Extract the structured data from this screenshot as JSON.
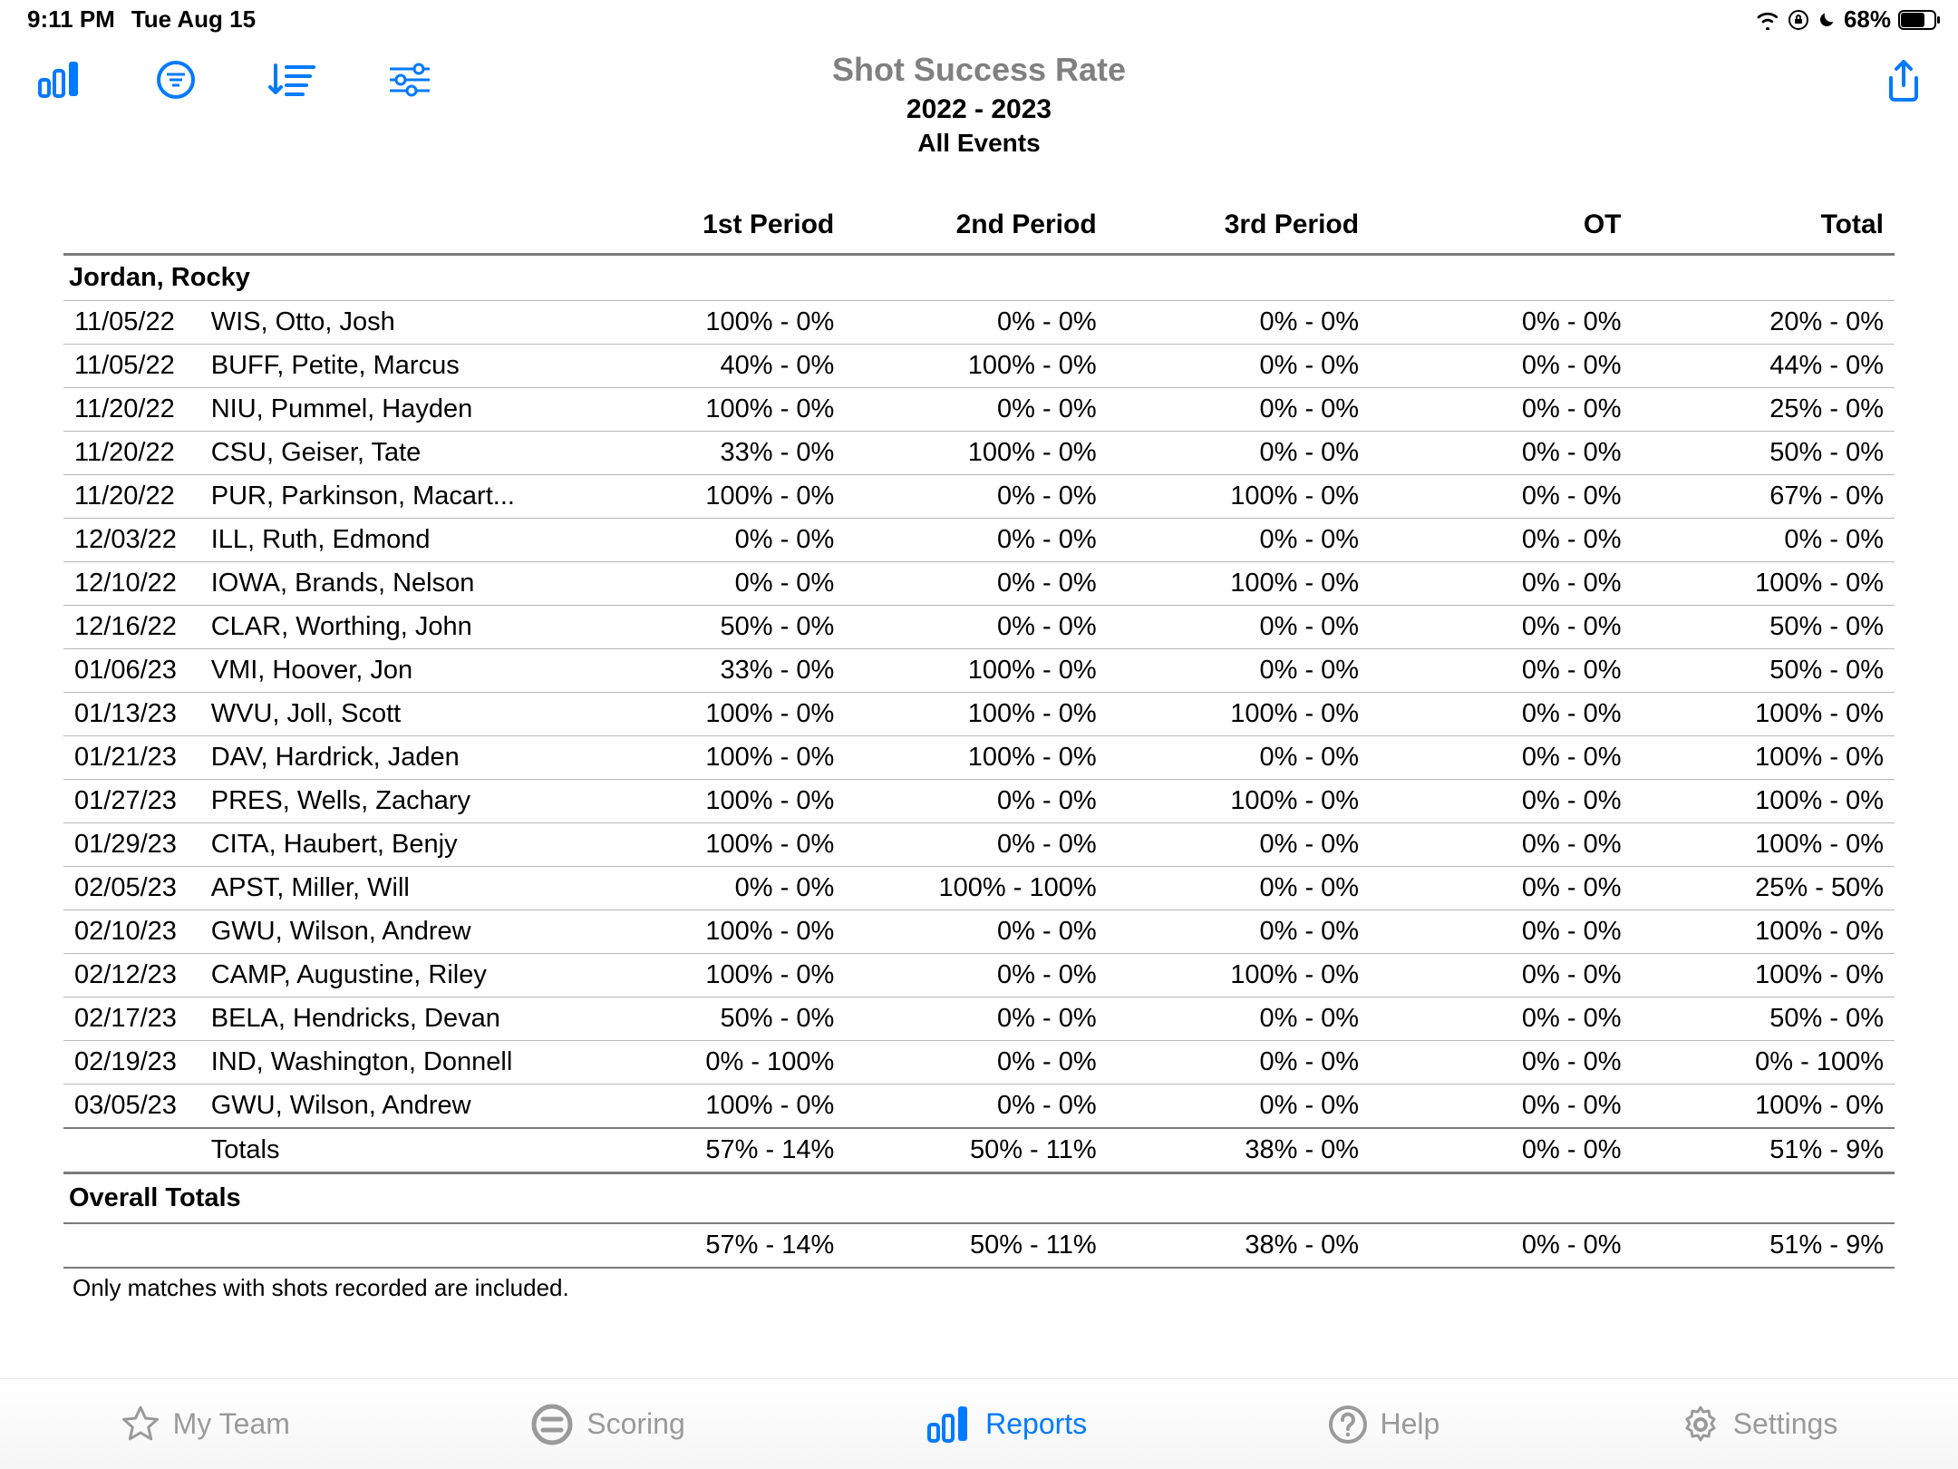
{
  "status_bar": {
    "time": "9:11 PM",
    "date": "Tue Aug 15",
    "battery_pct": "68%"
  },
  "header": {
    "title": "Shot Success Rate",
    "subtitle": "2022 - 2023",
    "subtitle2": "All Events"
  },
  "columns": {
    "p1": "1st Period",
    "p2": "2nd Period",
    "p3": "3rd Period",
    "ot": "OT",
    "total": "Total"
  },
  "section": {
    "player_name": "Jordan, Rocky",
    "totals_label": "Totals"
  },
  "rows": [
    {
      "date": "11/05/22",
      "opp": "WIS, Otto, Josh",
      "p1": "100% - 0%",
      "p2": "0% - 0%",
      "p3": "0% - 0%",
      "ot": "0% - 0%",
      "total": "20% - 0%"
    },
    {
      "date": "11/05/22",
      "opp": "BUFF, Petite, Marcus",
      "p1": "40% - 0%",
      "p2": "100% - 0%",
      "p3": "0% - 0%",
      "ot": "0% - 0%",
      "total": "44% - 0%"
    },
    {
      "date": "11/20/22",
      "opp": "NIU, Pummel, Hayden",
      "p1": "100% - 0%",
      "p2": "0% - 0%",
      "p3": "0% - 0%",
      "ot": "0% - 0%",
      "total": "25% - 0%"
    },
    {
      "date": "11/20/22",
      "opp": "CSU, Geiser, Tate",
      "p1": "33% - 0%",
      "p2": "100% - 0%",
      "p3": "0% - 0%",
      "ot": "0% - 0%",
      "total": "50% - 0%"
    },
    {
      "date": "11/20/22",
      "opp": "PUR, Parkinson, Macart...",
      "p1": "100% - 0%",
      "p2": "0% - 0%",
      "p3": "100% - 0%",
      "ot": "0% - 0%",
      "total": "67% - 0%"
    },
    {
      "date": "12/03/22",
      "opp": "ILL, Ruth, Edmond",
      "p1": "0% - 0%",
      "p2": "0% - 0%",
      "p3": "0% - 0%",
      "ot": "0% - 0%",
      "total": "0% - 0%"
    },
    {
      "date": "12/10/22",
      "opp": "IOWA, Brands, Nelson",
      "p1": "0% - 0%",
      "p2": "0% - 0%",
      "p3": "100% - 0%",
      "ot": "0% - 0%",
      "total": "100% - 0%"
    },
    {
      "date": "12/16/22",
      "opp": "CLAR, Worthing, John",
      "p1": "50% - 0%",
      "p2": "0% - 0%",
      "p3": "0% - 0%",
      "ot": "0% - 0%",
      "total": "50% - 0%"
    },
    {
      "date": "01/06/23",
      "opp": "VMI, Hoover, Jon",
      "p1": "33% - 0%",
      "p2": "100% - 0%",
      "p3": "0% - 0%",
      "ot": "0% - 0%",
      "total": "50% - 0%"
    },
    {
      "date": "01/13/23",
      "opp": "WVU, Joll, Scott",
      "p1": "100% - 0%",
      "p2": "100% - 0%",
      "p3": "100% - 0%",
      "ot": "0% - 0%",
      "total": "100% - 0%"
    },
    {
      "date": "01/21/23",
      "opp": "DAV, Hardrick, Jaden",
      "p1": "100% - 0%",
      "p2": "100% - 0%",
      "p3": "0% - 0%",
      "ot": "0% - 0%",
      "total": "100% - 0%"
    },
    {
      "date": "01/27/23",
      "opp": "PRES, Wells, Zachary",
      "p1": "100% - 0%",
      "p2": "0% - 0%",
      "p3": "100% - 0%",
      "ot": "0% - 0%",
      "total": "100% - 0%"
    },
    {
      "date": "01/29/23",
      "opp": "CITA, Haubert, Benjy",
      "p1": "100% - 0%",
      "p2": "0% - 0%",
      "p3": "0% - 0%",
      "ot": "0% - 0%",
      "total": "100% - 0%"
    },
    {
      "date": "02/05/23",
      "opp": "APST, Miller, Will",
      "p1": "0% - 0%",
      "p2": "100% - 100%",
      "p3": "0% - 0%",
      "ot": "0% - 0%",
      "total": "25% - 50%"
    },
    {
      "date": "02/10/23",
      "opp": "GWU, Wilson, Andrew",
      "p1": "100% - 0%",
      "p2": "0% - 0%",
      "p3": "0% - 0%",
      "ot": "0% - 0%",
      "total": "100% - 0%"
    },
    {
      "date": "02/12/23",
      "opp": "CAMP, Augustine, Riley",
      "p1": "100% - 0%",
      "p2": "0% - 0%",
      "p3": "100% - 0%",
      "ot": "0% - 0%",
      "total": "100% - 0%"
    },
    {
      "date": "02/17/23",
      "opp": "BELA, Hendricks, Devan",
      "p1": "50% - 0%",
      "p2": "0% - 0%",
      "p3": "0% - 0%",
      "ot": "0% - 0%",
      "total": "50% - 0%"
    },
    {
      "date": "02/19/23",
      "opp": "IND, Washington, Donnell",
      "p1": "0% - 100%",
      "p2": "0% - 0%",
      "p3": "0% - 0%",
      "ot": "0% - 0%",
      "total": "0% - 100%"
    },
    {
      "date": "03/05/23",
      "opp": "GWU, Wilson, Andrew",
      "p1": "100% - 0%",
      "p2": "0% - 0%",
      "p3": "0% - 0%",
      "ot": "0% - 0%",
      "total": "100% - 0%"
    }
  ],
  "totals_row": {
    "p1": "57% - 14%",
    "p2": "50% - 11%",
    "p3": "38% - 0%",
    "ot": "0% - 0%",
    "total": "51% - 9%"
  },
  "overall": {
    "label": "Overall Totals",
    "row": {
      "p1": "57% - 14%",
      "p2": "50% - 11%",
      "p3": "38% - 0%",
      "ot": "0% - 0%",
      "total": "51% - 9%"
    }
  },
  "footnote": "Only matches with shots recorded are included.",
  "tabbar": {
    "my_team": "My Team",
    "scoring": "Scoring",
    "reports": "Reports",
    "help": "Help",
    "settings": "Settings"
  },
  "colors": {
    "accent": "#007aff",
    "header_gray": "#808080",
    "row_border": "#b8b8b8",
    "heavy_border": "#7a7a7a",
    "tab_inactive": "#9a9a9a"
  }
}
